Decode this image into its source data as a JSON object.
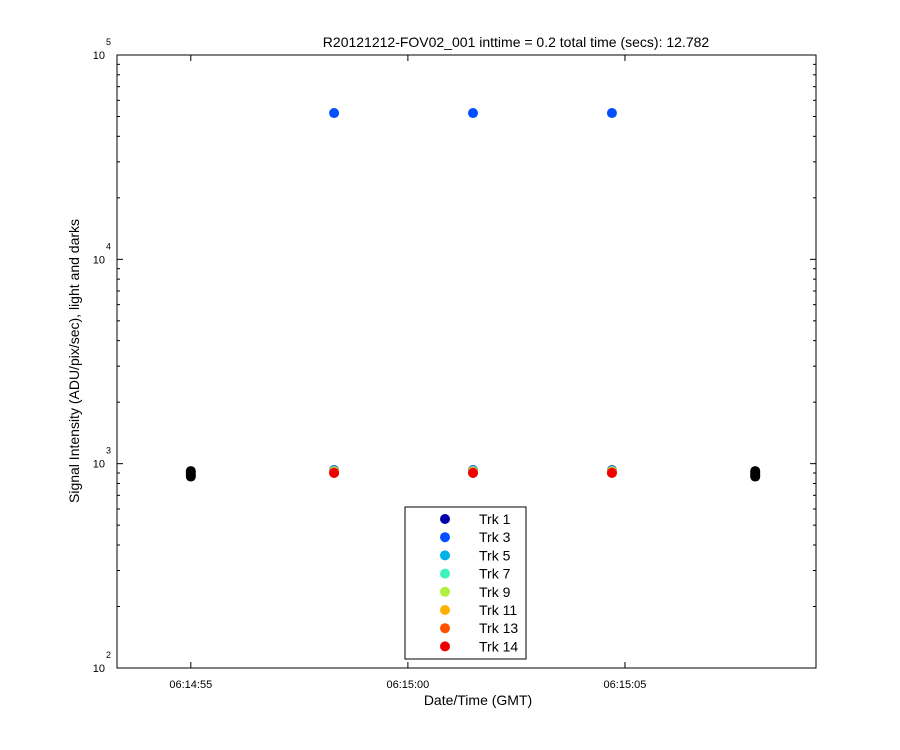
{
  "chart_data": {
    "type": "scatter",
    "title": "R20121212-FOV02_001 inttime = 0.2 total time (secs): 12.782",
    "xlabel": "Date/Time (GMT)",
    "ylabel": "Signal Intensity (ADU/pix/sec), light and darks",
    "yscale": "log",
    "ylim": [
      100,
      100000
    ],
    "xlim": [
      "06:14:53.3",
      "06:15:09.4"
    ],
    "y_ticks": [
      {
        "base": "10",
        "exp": "2"
      },
      {
        "base": "10",
        "exp": "3"
      },
      {
        "base": "10",
        "exp": "4"
      },
      {
        "base": "10",
        "exp": "5"
      }
    ],
    "x_ticks": [
      "06:14:55",
      "06:15:00",
      "06:15:05"
    ],
    "grid": false,
    "legend_placement": "bottom-center",
    "series": [
      {
        "name": "Trk 1",
        "color": "#0000aa",
        "x": [
          "06:14:58.3",
          "06:15:01.5",
          "06:15:04.7"
        ],
        "y": [
          930,
          930,
          930
        ]
      },
      {
        "name": "Trk 3",
        "color": "#0050ff",
        "x": [
          "06:14:58.3",
          "06:15:01.5",
          "06:15:04.7"
        ],
        "y": [
          52000,
          52000,
          52000
        ]
      },
      {
        "name": "Trk 5",
        "color": "#00b0e8",
        "x": [
          "06:14:58.3",
          "06:15:01.5",
          "06:15:04.7"
        ],
        "y": [
          925,
          925,
          925
        ]
      },
      {
        "name": "Trk 7",
        "color": "#40f0c0",
        "x": [
          "06:14:58.3",
          "06:15:01.5",
          "06:15:04.7"
        ],
        "y": [
          920,
          920,
          920
        ]
      },
      {
        "name": "Trk 9",
        "color": "#b0f040",
        "x": [
          "06:14:58.3",
          "06:15:01.5",
          "06:15:04.7"
        ],
        "y": [
          915,
          915,
          915
        ]
      },
      {
        "name": "Trk 11",
        "color": "#ffb000",
        "x": [
          "06:14:58.3",
          "06:15:01.5",
          "06:15:04.7"
        ],
        "y": [
          910,
          910,
          910
        ]
      },
      {
        "name": "Trk 13",
        "color": "#ff5000",
        "x": [
          "06:14:58.3",
          "06:15:01.5",
          "06:15:04.7"
        ],
        "y": [
          905,
          905,
          905
        ]
      },
      {
        "name": "Trk 14",
        "color": "#ee0000",
        "x": [
          "06:14:58.3",
          "06:15:01.5",
          "06:15:04.7"
        ],
        "y": [
          900,
          900,
          900
        ]
      }
    ],
    "dark_frames": {
      "color": "#000000",
      "x": [
        "06:14:55",
        "06:14:55",
        "06:14:55",
        "06:14:55",
        "06:14:55",
        "06:15:08",
        "06:15:08",
        "06:15:08",
        "06:15:08",
        "06:15:08"
      ],
      "y": [
        920,
        905,
        890,
        875,
        865,
        920,
        905,
        890,
        875,
        865
      ]
    }
  }
}
